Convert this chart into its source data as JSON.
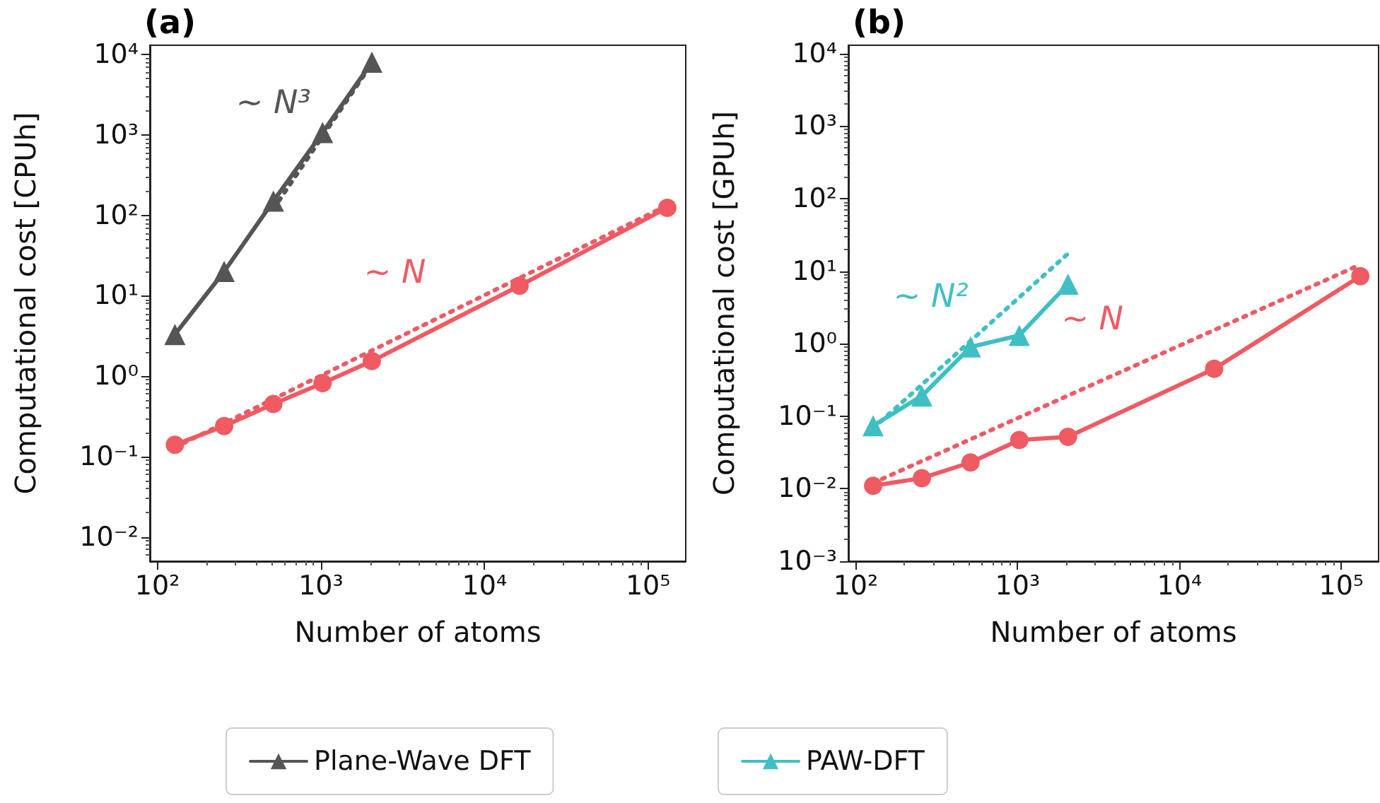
{
  "chart_data": [
    {
      "type": "line",
      "title": "(a)",
      "xlabel": "Number of atoms",
      "ylabel": "Computational cost [CPUh]",
      "log": "xy",
      "xlim": [
        90,
        170000
      ],
      "ylim": [
        0.005,
        13000
      ],
      "xticks": [
        {
          "value": 100,
          "label": "10²"
        },
        {
          "value": 1000,
          "label": "10³"
        },
        {
          "value": 10000,
          "label": "10⁴"
        },
        {
          "value": 100000,
          "label": "10⁵"
        }
      ],
      "yticks": [
        {
          "value": 0.01,
          "label": "10⁻²"
        },
        {
          "value": 0.1,
          "label": "10⁻¹"
        },
        {
          "value": 1,
          "label": "10⁰"
        },
        {
          "value": 10,
          "label": "10¹"
        },
        {
          "value": 100,
          "label": "10²"
        },
        {
          "value": 1000,
          "label": "10³"
        },
        {
          "value": 10000,
          "label": "10⁴"
        }
      ],
      "grid": false,
      "legend": "bottom",
      "annotations": [
        "~ N³",
        "~ N"
      ],
      "series": [
        {
          "name": "Plane-Wave DFT",
          "color": "#555555",
          "marker": "triangle",
          "line_style": "solid",
          "x": [
            128,
            256,
            512,
            1024,
            2048
          ],
          "values": [
            3.3,
            20,
            150,
            1070,
            8000
          ]
        },
        {
          "color": "#555555",
          "marker": "none",
          "line_style": "dotted",
          "x": [
            512,
            2048
          ],
          "values": [
            120,
            7680
          ]
        },
        {
          "color": "#ef5a63",
          "marker": "circle",
          "line_style": "solid",
          "x": [
            128,
            256,
            512,
            1024,
            2048,
            16384,
            131072
          ],
          "values": [
            0.14,
            0.24,
            0.45,
            0.82,
            1.54,
            13.3,
            124
          ]
        },
        {
          "color": "#ef5a63",
          "marker": "none",
          "line_style": "dotted",
          "x": [
            128,
            131072
          ],
          "values": [
            0.13,
            133
          ]
        }
      ]
    },
    {
      "type": "line",
      "title": "(b)",
      "xlabel": "Number of atoms",
      "ylabel": "Computational cost [GPUh]",
      "log": "xy",
      "xlim": [
        90,
        170000
      ],
      "ylim": [
        0.001,
        13000
      ],
      "xticks": [
        {
          "value": 100,
          "label": "10²"
        },
        {
          "value": 1000,
          "label": "10³"
        },
        {
          "value": 10000,
          "label": "10⁴"
        },
        {
          "value": 100000,
          "label": "10⁵"
        }
      ],
      "yticks": [
        {
          "value": 0.001,
          "label": "10⁻³"
        },
        {
          "value": 0.01,
          "label": "10⁻²"
        },
        {
          "value": 0.1,
          "label": "10⁻¹"
        },
        {
          "value": 1,
          "label": "10⁰"
        },
        {
          "value": 10,
          "label": "10¹"
        },
        {
          "value": 100,
          "label": "10²"
        },
        {
          "value": 1000,
          "label": "10³"
        },
        {
          "value": 10000,
          "label": "10⁴"
        }
      ],
      "grid": false,
      "legend": "bottom",
      "annotations": [
        "~ N²",
        "~ N"
      ],
      "series": [
        {
          "name": "PAW-DFT",
          "color": "#3fbfc4",
          "marker": "triangle",
          "line_style": "solid",
          "x": [
            128,
            256,
            512,
            1024,
            2048
          ],
          "values": [
            0.074,
            0.19,
            0.9,
            1.3,
            6.6
          ]
        },
        {
          "color": "#3fbfc4",
          "marker": "none",
          "line_style": "dotted",
          "x": [
            128,
            2048
          ],
          "values": [
            0.068,
            17.4
          ]
        },
        {
          "color": "#ef5a63",
          "marker": "circle",
          "line_style": "solid",
          "x": [
            128,
            256,
            512,
            1024,
            2048,
            16384,
            131072
          ],
          "values": [
            0.011,
            0.014,
            0.023,
            0.047,
            0.052,
            0.45,
            8.5
          ]
        },
        {
          "color": "#ef5a63",
          "marker": "none",
          "line_style": "dotted",
          "x": [
            128,
            131072
          ],
          "values": [
            0.012,
            12.3
          ]
        }
      ]
    }
  ]
}
